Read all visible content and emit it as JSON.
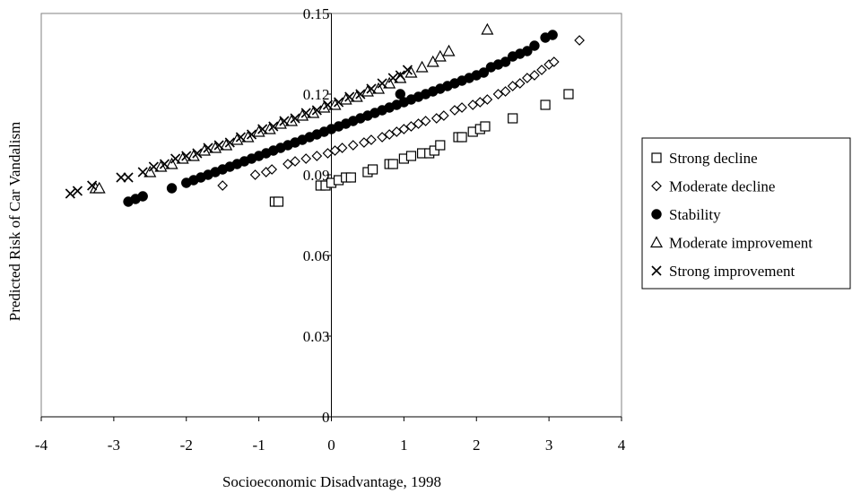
{
  "chart_data": {
    "type": "scatter",
    "title": "",
    "xlabel": "Socioeconomic Disadvantage, 1998",
    "ylabel": "Predicted Risk of Car Vandalism",
    "xlim": [
      -4,
      4
    ],
    "ylim": [
      0,
      0.15
    ],
    "x_ticks": [
      "-4",
      "-3",
      "-2",
      "-1",
      "0",
      "1",
      "2",
      "3",
      "4"
    ],
    "y_ticks": [
      "0",
      "0.03",
      "0.06",
      "0.09",
      "0.12",
      "0.15"
    ],
    "grid": false,
    "legend_position": "right",
    "series": [
      {
        "name": "Strong decline",
        "marker": "square-open",
        "points": [
          [
            -0.78,
            0.08
          ],
          [
            -0.73,
            0.08
          ],
          [
            -0.15,
            0.086
          ],
          [
            -0.08,
            0.086
          ],
          [
            0.0,
            0.087
          ],
          [
            0.1,
            0.088
          ],
          [
            0.2,
            0.089
          ],
          [
            0.27,
            0.089
          ],
          [
            0.5,
            0.091
          ],
          [
            0.57,
            0.092
          ],
          [
            0.8,
            0.094
          ],
          [
            0.85,
            0.094
          ],
          [
            1.0,
            0.096
          ],
          [
            1.1,
            0.097
          ],
          [
            1.25,
            0.098
          ],
          [
            1.35,
            0.098
          ],
          [
            1.42,
            0.099
          ],
          [
            1.5,
            0.101
          ],
          [
            1.75,
            0.104
          ],
          [
            1.8,
            0.104
          ],
          [
            1.95,
            0.106
          ],
          [
            2.05,
            0.107
          ],
          [
            2.12,
            0.108
          ],
          [
            2.5,
            0.111
          ],
          [
            2.95,
            0.116
          ],
          [
            3.27,
            0.12
          ]
        ]
      },
      {
        "name": "Moderate decline",
        "marker": "diamond-open",
        "points": [
          [
            -1.5,
            0.086
          ],
          [
            -1.05,
            0.09
          ],
          [
            -0.9,
            0.091
          ],
          [
            -0.82,
            0.092
          ],
          [
            -0.6,
            0.094
          ],
          [
            -0.5,
            0.095
          ],
          [
            -0.35,
            0.096
          ],
          [
            -0.2,
            0.097
          ],
          [
            -0.05,
            0.098
          ],
          [
            0.05,
            0.099
          ],
          [
            0.15,
            0.1
          ],
          [
            0.3,
            0.101
          ],
          [
            0.45,
            0.102
          ],
          [
            0.55,
            0.103
          ],
          [
            0.7,
            0.104
          ],
          [
            0.8,
            0.105
          ],
          [
            0.9,
            0.106
          ],
          [
            1.0,
            0.107
          ],
          [
            1.1,
            0.108
          ],
          [
            1.2,
            0.109
          ],
          [
            1.3,
            0.11
          ],
          [
            1.45,
            0.111
          ],
          [
            1.55,
            0.112
          ],
          [
            1.7,
            0.114
          ],
          [
            1.8,
            0.115
          ],
          [
            1.95,
            0.116
          ],
          [
            2.05,
            0.117
          ],
          [
            2.15,
            0.118
          ],
          [
            2.3,
            0.12
          ],
          [
            2.4,
            0.121
          ],
          [
            2.5,
            0.123
          ],
          [
            2.6,
            0.124
          ],
          [
            2.7,
            0.126
          ],
          [
            2.8,
            0.127
          ],
          [
            2.9,
            0.129
          ],
          [
            3.0,
            0.131
          ],
          [
            3.07,
            0.132
          ],
          [
            3.42,
            0.14
          ]
        ]
      },
      {
        "name": "Stability",
        "marker": "circle-filled",
        "points": [
          [
            -2.8,
            0.08
          ],
          [
            -2.7,
            0.081
          ],
          [
            -2.6,
            0.082
          ],
          [
            -2.2,
            0.085
          ],
          [
            -2.0,
            0.087
          ],
          [
            -1.9,
            0.088
          ],
          [
            -1.8,
            0.089
          ],
          [
            -1.7,
            0.09
          ],
          [
            -1.6,
            0.091
          ],
          [
            -1.5,
            0.092
          ],
          [
            -1.4,
            0.093
          ],
          [
            -1.3,
            0.094
          ],
          [
            -1.2,
            0.095
          ],
          [
            -1.1,
            0.096
          ],
          [
            -1.0,
            0.097
          ],
          [
            -0.9,
            0.098
          ],
          [
            -0.8,
            0.099
          ],
          [
            -0.7,
            0.1
          ],
          [
            -0.6,
            0.101
          ],
          [
            -0.5,
            0.102
          ],
          [
            -0.4,
            0.103
          ],
          [
            -0.3,
            0.104
          ],
          [
            -0.2,
            0.105
          ],
          [
            -0.1,
            0.106
          ],
          [
            0.0,
            0.107
          ],
          [
            0.1,
            0.108
          ],
          [
            0.2,
            0.109
          ],
          [
            0.3,
            0.11
          ],
          [
            0.4,
            0.111
          ],
          [
            0.5,
            0.112
          ],
          [
            0.6,
            0.113
          ],
          [
            0.7,
            0.114
          ],
          [
            0.8,
            0.115
          ],
          [
            0.9,
            0.116
          ],
          [
            0.95,
            0.12
          ],
          [
            1.0,
            0.117
          ],
          [
            1.1,
            0.118
          ],
          [
            1.2,
            0.119
          ],
          [
            1.3,
            0.12
          ],
          [
            1.4,
            0.121
          ],
          [
            1.5,
            0.122
          ],
          [
            1.6,
            0.123
          ],
          [
            1.7,
            0.124
          ],
          [
            1.8,
            0.125
          ],
          [
            1.9,
            0.126
          ],
          [
            2.0,
            0.127
          ],
          [
            2.1,
            0.128
          ],
          [
            2.2,
            0.13
          ],
          [
            2.3,
            0.131
          ],
          [
            2.4,
            0.132
          ],
          [
            2.5,
            0.134
          ],
          [
            2.6,
            0.135
          ],
          [
            2.7,
            0.136
          ],
          [
            2.8,
            0.138
          ],
          [
            2.95,
            0.141
          ],
          [
            3.05,
            0.142
          ]
        ]
      },
      {
        "name": "Moderate improvement",
        "marker": "triangle-open",
        "points": [
          [
            -3.25,
            0.085
          ],
          [
            -3.2,
            0.085
          ],
          [
            -2.5,
            0.091
          ],
          [
            -2.35,
            0.093
          ],
          [
            -2.2,
            0.094
          ],
          [
            -2.05,
            0.096
          ],
          [
            -1.9,
            0.097
          ],
          [
            -1.75,
            0.099
          ],
          [
            -1.6,
            0.1
          ],
          [
            -1.45,
            0.101
          ],
          [
            -1.3,
            0.103
          ],
          [
            -1.15,
            0.104
          ],
          [
            -1.0,
            0.106
          ],
          [
            -0.85,
            0.107
          ],
          [
            -0.7,
            0.109
          ],
          [
            -0.55,
            0.11
          ],
          [
            -0.4,
            0.112
          ],
          [
            -0.25,
            0.113
          ],
          [
            -0.1,
            0.115
          ],
          [
            0.05,
            0.116
          ],
          [
            0.2,
            0.118
          ],
          [
            0.35,
            0.119
          ],
          [
            0.5,
            0.121
          ],
          [
            0.65,
            0.122
          ],
          [
            0.8,
            0.124
          ],
          [
            0.95,
            0.126
          ],
          [
            1.1,
            0.128
          ],
          [
            1.25,
            0.13
          ],
          [
            1.4,
            0.132
          ],
          [
            1.5,
            0.134
          ],
          [
            1.62,
            0.136
          ],
          [
            2.15,
            0.144
          ]
        ]
      },
      {
        "name": "Strong improvement",
        "marker": "x",
        "points": [
          [
            -3.6,
            0.083
          ],
          [
            -3.5,
            0.084
          ],
          [
            -3.3,
            0.086
          ],
          [
            -2.9,
            0.089
          ],
          [
            -2.8,
            0.089
          ],
          [
            -2.6,
            0.091
          ],
          [
            -2.45,
            0.093
          ],
          [
            -2.3,
            0.094
          ],
          [
            -2.15,
            0.096
          ],
          [
            -2.0,
            0.097
          ],
          [
            -1.85,
            0.098
          ],
          [
            -1.7,
            0.1
          ],
          [
            -1.55,
            0.101
          ],
          [
            -1.4,
            0.102
          ],
          [
            -1.25,
            0.104
          ],
          [
            -1.1,
            0.105
          ],
          [
            -0.95,
            0.107
          ],
          [
            -0.8,
            0.108
          ],
          [
            -0.65,
            0.11
          ],
          [
            -0.5,
            0.111
          ],
          [
            -0.35,
            0.113
          ],
          [
            -0.2,
            0.114
          ],
          [
            -0.05,
            0.116
          ],
          [
            0.1,
            0.117
          ],
          [
            0.25,
            0.119
          ],
          [
            0.4,
            0.12
          ],
          [
            0.55,
            0.122
          ],
          [
            0.7,
            0.124
          ],
          [
            0.85,
            0.126
          ],
          [
            0.95,
            0.127
          ],
          [
            1.05,
            0.129
          ]
        ]
      }
    ]
  }
}
